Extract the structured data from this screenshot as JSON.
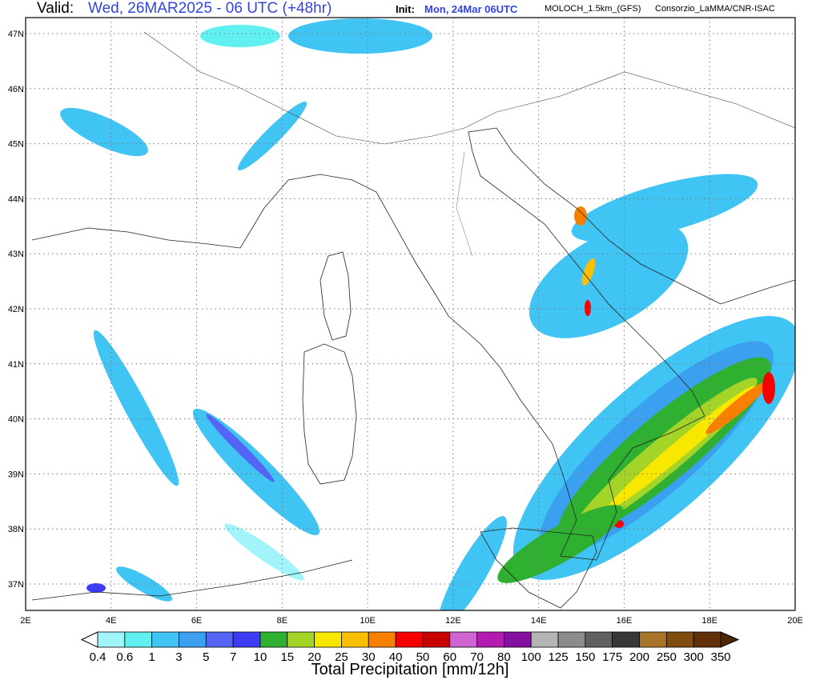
{
  "header": {
    "valid_label": "Valid:",
    "valid_value": "Wed, 26MAR2025 - 06 UTC (+48hr)",
    "init_label": "Init:",
    "init_value": "Mon, 24Mar 06UTC",
    "model": "MOLOCH_1.5km_(GFS)",
    "organization": "Consorzio_LaMMA/CNR-ISAC"
  },
  "map": {
    "lon_ticks": [
      "2E",
      "4E",
      "6E",
      "8E",
      "10E",
      "12E",
      "14E",
      "16E",
      "18E",
      "20E"
    ],
    "lat_ticks": [
      "47N",
      "46N",
      "45N",
      "44N",
      "43N",
      "42N",
      "41N",
      "40N",
      "39N",
      "38N",
      "37N"
    ],
    "lon_range": [
      2,
      20
    ],
    "lat_range": [
      36.5,
      47.3
    ],
    "grid": "dotted"
  },
  "colorbar": {
    "title": "Total Precipitation [mm/12h]",
    "labels": [
      "0.4",
      "0.6",
      "1",
      "3",
      "5",
      "7",
      "10",
      "15",
      "20",
      "25",
      "30",
      "40",
      "50",
      "60",
      "70",
      "80",
      "100",
      "125",
      "150",
      "175",
      "200",
      "250",
      "300",
      "350"
    ],
    "colors": [
      "#a0f4fa",
      "#60f0f0",
      "#40c4f4",
      "#3ca0f0",
      "#5464f4",
      "#3c3cf4",
      "#30b030",
      "#a4d428",
      "#f8e800",
      "#f8c000",
      "#f88000",
      "#f80000",
      "#c80000",
      "#d064d0",
      "#b41cb0",
      "#8410a0",
      "#b4b4b4",
      "#8c8c8c",
      "#606060",
      "#383838",
      "#a87428",
      "#804c10",
      "#603008"
    ],
    "under_color": "#ffffff",
    "over_color": "#4a2800"
  }
}
